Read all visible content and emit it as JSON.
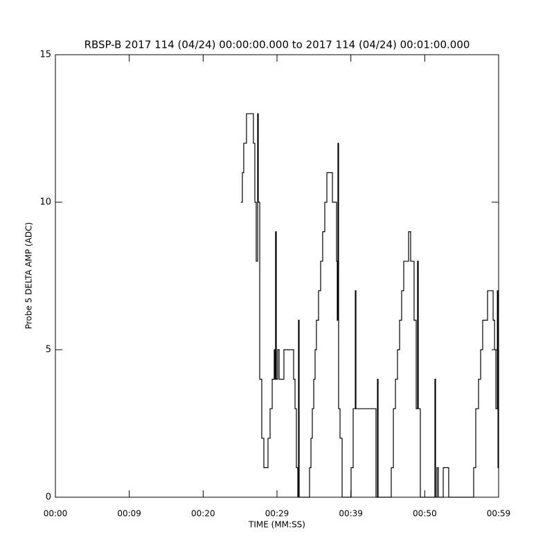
{
  "chart_data": {
    "type": "line",
    "title": "RBSP-B 2017 114 (04/24) 00:00:00.000 to 2017 114 (04/24) 00:01:00.000",
    "x_label": "TIME (MM:SS)",
    "y_label": "Probe 5 DELTA AMP (ADC)",
    "xlim": [
      0,
      59
    ],
    "xticks": [
      {
        "value": 0,
        "label": "00:00"
      },
      {
        "value": 9.833,
        "label": "00:09"
      },
      {
        "value": 19.667,
        "label": "00:20"
      },
      {
        "value": 29.5,
        "label": "00:29"
      },
      {
        "value": 39.333,
        "label": "00:39"
      },
      {
        "value": 49.167,
        "label": "00:50"
      },
      {
        "value": 59,
        "label": "00:59"
      }
    ],
    "ylim": [
      0,
      15
    ],
    "yticks": [
      0,
      5,
      10,
      15
    ],
    "color": "#000000",
    "x": [
      24.7,
      24.89,
      25.07,
      25.44,
      26.36,
      26.55,
      26.73,
      26.92,
      27.01,
      27.2,
      27.47,
      27.75,
      28.3,
      28.58,
      28.86,
      29.13,
      29.22,
      29.31,
      29.41,
      29.59,
      29.78,
      30.42,
      31.71,
      31.9,
      32.08,
      32.27,
      32.36,
      32.45,
      33.83,
      34.02,
      34.2,
      34.39,
      34.57,
      34.75,
      35.03,
      35.31,
      35.58,
      35.86,
      36.14,
      36.88,
      37.43,
      37.52,
      37.61,
      37.7,
      37.89,
      38.17,
      39.36,
      39.64,
      39.92,
      40.01,
      42.68,
      42.87,
      42.96,
      44.71,
      44.99,
      45.27,
      45.54,
      45.82,
      46.09,
      46.37,
      47.02,
      47.29,
      47.75,
      48.03,
      48.21,
      48.31,
      48.58,
      50.52,
      50.61,
      50.8,
      50.98,
      51.63,
      52.36,
      55.68,
      55.96,
      56.33,
      56.61,
      56.88,
      57.53,
      58.27,
      58.46,
      58.64,
      58.83,
      58.92,
      59.0
    ],
    "values": [
      10,
      11,
      12,
      13,
      12,
      10,
      8,
      13,
      10,
      4,
      2,
      1,
      2,
      3,
      4,
      5,
      4,
      9,
      4,
      5,
      4,
      5,
      4,
      3,
      1,
      0,
      6,
      0,
      1,
      2,
      3,
      4,
      5,
      6,
      7,
      8,
      9,
      10,
      11,
      10,
      8,
      6,
      12,
      3,
      2,
      0,
      1,
      3,
      7,
      3,
      0,
      4,
      0,
      1,
      3,
      4,
      5,
      6,
      7,
      8,
      9,
      8,
      6,
      3,
      8,
      3,
      0,
      4,
      0,
      1,
      0,
      1,
      0,
      1,
      3,
      4,
      5,
      6,
      7,
      6,
      5,
      3,
      7,
      1,
      5
    ]
  }
}
